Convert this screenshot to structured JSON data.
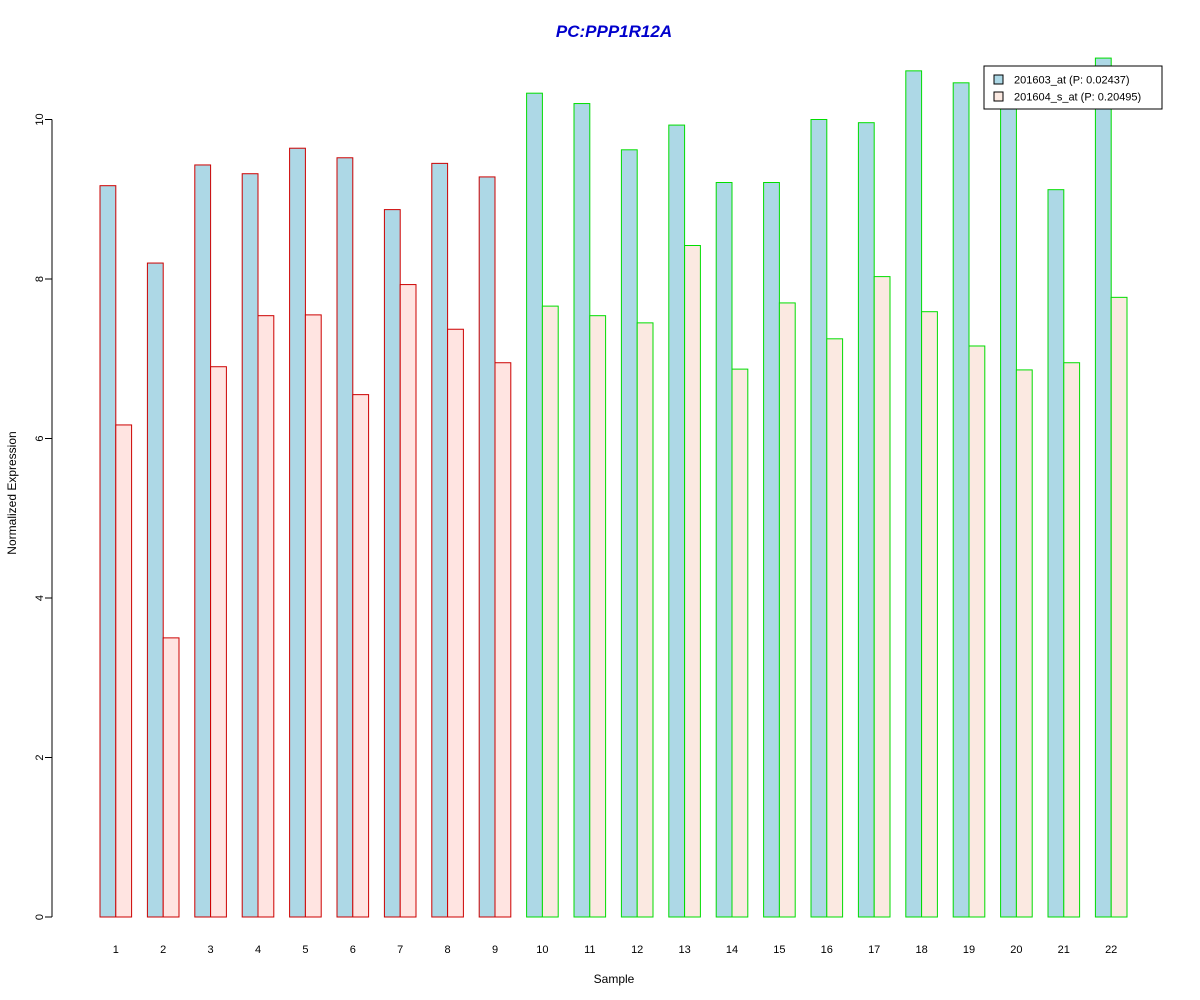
{
  "chart_data": {
    "type": "bar",
    "title": "PC:PPP1R12A",
    "xlabel": "Sample",
    "ylabel": "Normalized Expression",
    "categories": [
      "1",
      "2",
      "3",
      "4",
      "5",
      "6",
      "7",
      "8",
      "9",
      "10",
      "11",
      "12",
      "13",
      "14",
      "15",
      "16",
      "17",
      "18",
      "19",
      "20",
      "21",
      "22"
    ],
    "yticks": [
      0,
      2,
      4,
      6,
      8,
      10
    ],
    "ylim": [
      0,
      10.9
    ],
    "series": [
      {
        "name": "201603_at (P: 0.02437)",
        "fill": "#add8e6",
        "values": [
          9.17,
          8.2,
          9.43,
          9.32,
          9.64,
          9.52,
          8.87,
          9.45,
          9.28,
          10.33,
          10.2,
          9.62,
          9.93,
          9.21,
          9.21,
          10.0,
          9.96,
          10.61,
          10.46,
          10.27,
          9.12,
          10.77
        ]
      },
      {
        "name": "201604_s_at (P: 0.20495)",
        "fill_group1": "#ffe4e1",
        "fill_group2": "#fbe9e1",
        "values": [
          6.17,
          3.5,
          6.9,
          7.54,
          7.55,
          6.55,
          7.93,
          7.37,
          6.95,
          7.66,
          7.54,
          7.45,
          8.42,
          6.87,
          7.7,
          7.25,
          8.03,
          7.59,
          7.16,
          6.86,
          6.95,
          7.77
        ]
      }
    ],
    "groups": [
      {
        "samples": [
          1,
          2,
          3,
          4,
          5,
          6,
          7,
          8,
          9
        ],
        "border": "#cc0000"
      },
      {
        "samples": [
          10,
          11,
          12,
          13,
          14,
          15,
          16,
          17,
          18,
          19,
          20,
          21,
          22
        ],
        "border": "#00dd00"
      }
    ],
    "legend_position": "top-right",
    "grid": false,
    "title_color": "#0000cc"
  }
}
